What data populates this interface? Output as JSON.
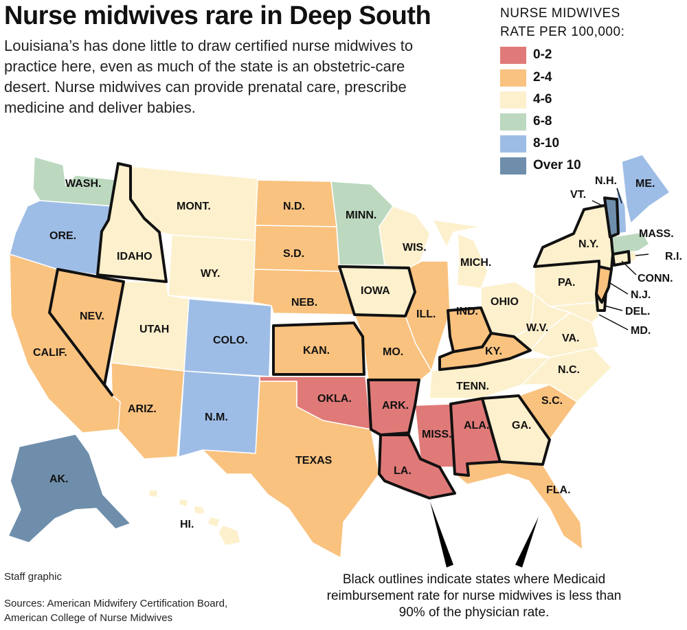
{
  "title": "Nurse midwives rare in Deep South",
  "subtitle": "Louisiana’s has done little to draw certified nurse midwives to practice here, even as much of the state is an obstetric-care desert. Nurse midwives can provide prenatal care, prescribe medicine and deliver babies.",
  "legend": {
    "title": "NURSE MIDWIVES RATE PER 100,000:",
    "items": [
      {
        "label": "0-2",
        "color": "#e07a78"
      },
      {
        "label": "2-4",
        "color": "#f9c27f"
      },
      {
        "label": "4-6",
        "color": "#fdf0cd"
      },
      {
        "label": "6-8",
        "color": "#bcd9c0"
      },
      {
        "label": "8-10",
        "color": "#9ebde6"
      },
      {
        "label": "Over 10",
        "color": "#6e8eab"
      }
    ]
  },
  "states": {
    "wa": {
      "name": "WASH.",
      "rate": "6-8"
    },
    "or": {
      "name": "ORE.",
      "rate": "8-10"
    },
    "ca": {
      "name": "CALIF.",
      "rate": "2-4"
    },
    "id": {
      "name": "IDAHO",
      "rate": "4-6",
      "outline": true
    },
    "nv": {
      "name": "NEV.",
      "rate": "2-4",
      "outline": true
    },
    "mt": {
      "name": "MONT.",
      "rate": "4-6"
    },
    "wy": {
      "name": "WY.",
      "rate": "4-6"
    },
    "ut": {
      "name": "UTAH",
      "rate": "4-6"
    },
    "az": {
      "name": "ARIZ.",
      "rate": "2-4"
    },
    "co": {
      "name": "COLO.",
      "rate": "8-10"
    },
    "nm": {
      "name": "N.M.",
      "rate": "8-10"
    },
    "nd": {
      "name": "N.D.",
      "rate": "2-4"
    },
    "sd": {
      "name": "S.D.",
      "rate": "2-4"
    },
    "ne": {
      "name": "NEB.",
      "rate": "2-4"
    },
    "ks": {
      "name": "KAN.",
      "rate": "2-4",
      "outline": true
    },
    "ok": {
      "name": "OKLA.",
      "rate": "0-2"
    },
    "tx": {
      "name": "TEXAS",
      "rate": "2-4"
    },
    "mn": {
      "name": "MINN.",
      "rate": "6-8"
    },
    "ia": {
      "name": "IOWA",
      "rate": "4-6",
      "outline": true
    },
    "mo": {
      "name": "MO.",
      "rate": "2-4"
    },
    "ar": {
      "name": "ARK.",
      "rate": "0-2",
      "outline": true
    },
    "la": {
      "name": "LA.",
      "rate": "0-2",
      "outline": true
    },
    "wi": {
      "name": "WIS.",
      "rate": "4-6"
    },
    "il": {
      "name": "ILL.",
      "rate": "2-4"
    },
    "ms": {
      "name": "MISS.",
      "rate": "0-2"
    },
    "mi": {
      "name": "MICH.",
      "rate": "4-6"
    },
    "in": {
      "name": "IND.",
      "rate": "2-4",
      "outline": true
    },
    "oh": {
      "name": "OHIO",
      "rate": "4-6"
    },
    "ky": {
      "name": "KY.",
      "rate": "2-4",
      "outline": true
    },
    "tn": {
      "name": "TENN.",
      "rate": "4-6"
    },
    "al": {
      "name": "ALA.",
      "rate": "0-2",
      "outline": true
    },
    "ga": {
      "name": "GA.",
      "rate": "4-6",
      "outline": true
    },
    "fl": {
      "name": "FLA.",
      "rate": "2-4"
    },
    "sc": {
      "name": "S.C.",
      "rate": "2-4"
    },
    "nc": {
      "name": "N.C.",
      "rate": "4-6"
    },
    "va": {
      "name": "VA.",
      "rate": "4-6"
    },
    "wv": {
      "name": "W.V.",
      "rate": "4-6"
    },
    "md": {
      "name": "MD.",
      "rate": "4-6"
    },
    "de": {
      "name": "DEL.",
      "rate": "4-6",
      "outline": true
    },
    "nj": {
      "name": "N.J.",
      "rate": "2-4",
      "outline": true
    },
    "pa": {
      "name": "PA.",
      "rate": "4-6"
    },
    "ny": {
      "name": "N.Y.",
      "rate": "4-6",
      "outline": true
    },
    "ct": {
      "name": "CONN.",
      "rate": "4-6",
      "outline": true
    },
    "ri": {
      "name": "R.I.",
      "rate": "4-6"
    },
    "ma": {
      "name": "MASS.",
      "rate": "6-8"
    },
    "vt": {
      "name": "VT.",
      "rate": "Over 10",
      "outline": true
    },
    "nh": {
      "name": "N.H.",
      "rate": "8-10"
    },
    "me": {
      "name": "ME.",
      "rate": "8-10"
    },
    "ak": {
      "name": "AK.",
      "rate": "Over 10"
    },
    "hi": {
      "name": "HI.",
      "rate": "4-6"
    }
  },
  "credit": "Staff graphic",
  "sources_line1": "Sources: American Midwifery Certification Board,",
  "sources_line2": "American College of Nurse Midwives",
  "note": "Black outlines indicate states where Medicaid reimbursement rate for nurse midwives is less than 90% of the physician rate."
}
